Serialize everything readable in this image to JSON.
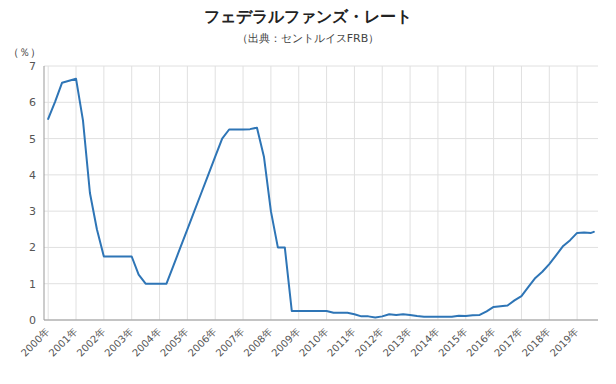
{
  "chart_data": {
    "type": "line",
    "title": "フェデラルファンズ・レート",
    "subtitle": "（出典：セントルイスFRB）",
    "ylabel": "（％）",
    "color": "#2e75b6",
    "grid": true,
    "xlim": [
      1999.85,
      2019.75
    ],
    "xticks": [
      {
        "value": 2000,
        "label": "2000年"
      },
      {
        "value": 2001,
        "label": "2001年"
      },
      {
        "value": 2002,
        "label": "2002年"
      },
      {
        "value": 2003,
        "label": "2003年"
      },
      {
        "value": 2004,
        "label": "2004年"
      },
      {
        "value": 2005,
        "label": "2005年"
      },
      {
        "value": 2006,
        "label": "2006年"
      },
      {
        "value": 2007,
        "label": "2007年"
      },
      {
        "value": 2008,
        "label": "2008年"
      },
      {
        "value": 2009,
        "label": "2009年"
      },
      {
        "value": 2010,
        "label": "2010年"
      },
      {
        "value": 2011,
        "label": "2011年"
      },
      {
        "value": 2012,
        "label": "2012年"
      },
      {
        "value": 2013,
        "label": "2013年"
      },
      {
        "value": 2014,
        "label": "2014年"
      },
      {
        "value": 2015,
        "label": "2015年"
      },
      {
        "value": 2016,
        "label": "2016年"
      },
      {
        "value": 2017,
        "label": "2017年"
      },
      {
        "value": 2018,
        "label": "2018年"
      },
      {
        "value": 2019,
        "label": "2019年"
      }
    ],
    "ylim": [
      0,
      7
    ],
    "yticks": [
      0,
      1,
      2,
      3,
      4,
      5,
      6,
      7
    ],
    "x": [
      2000.0,
      2000.25,
      2000.5,
      2001.0,
      2001.25,
      2001.5,
      2001.75,
      2002.0,
      2002.25,
      2002.5,
      2002.75,
      2003.0,
      2003.25,
      2003.5,
      2003.75,
      2004.0,
      2004.25,
      2004.5,
      2004.75,
      2005.0,
      2005.25,
      2005.5,
      2005.75,
      2006.0,
      2006.25,
      2006.5,
      2006.75,
      2007.0,
      2007.25,
      2007.5,
      2007.75,
      2008.0,
      2008.25,
      2008.5,
      2008.75,
      2009.0,
      2009.25,
      2009.5,
      2009.75,
      2010.0,
      2010.25,
      2010.5,
      2010.75,
      2011.0,
      2011.25,
      2011.5,
      2011.75,
      2012.0,
      2012.25,
      2012.5,
      2012.75,
      2013.0,
      2013.25,
      2013.5,
      2013.75,
      2014.0,
      2014.25,
      2014.5,
      2014.75,
      2015.0,
      2015.25,
      2015.5,
      2015.75,
      2016.0,
      2016.25,
      2016.5,
      2016.75,
      2017.0,
      2017.25,
      2017.5,
      2017.75,
      2018.0,
      2018.25,
      2018.5,
      2018.75,
      2019.0,
      2019.25,
      2019.5,
      2019.6
    ],
    "values": [
      5.54,
      6.02,
      6.54,
      6.65,
      5.5,
      3.5,
      2.5,
      1.75,
      1.75,
      1.75,
      1.75,
      1.75,
      1.25,
      1.0,
      1.0,
      1.0,
      1.0,
      1.5,
      2.0,
      2.5,
      3.0,
      3.5,
      4.0,
      4.5,
      5.0,
      5.25,
      5.25,
      5.25,
      5.26,
      5.3,
      4.5,
      3.0,
      2.0,
      2.0,
      0.25,
      0.25,
      0.25,
      0.25,
      0.25,
      0.25,
      0.2,
      0.2,
      0.2,
      0.16,
      0.1,
      0.1,
      0.07,
      0.1,
      0.16,
      0.14,
      0.16,
      0.14,
      0.11,
      0.09,
      0.09,
      0.09,
      0.09,
      0.09,
      0.12,
      0.11,
      0.13,
      0.14,
      0.24,
      0.36,
      0.38,
      0.4,
      0.54,
      0.66,
      0.91,
      1.16,
      1.33,
      1.54,
      1.79,
      2.04,
      2.2,
      2.4,
      2.41,
      2.4,
      2.43
    ]
  }
}
